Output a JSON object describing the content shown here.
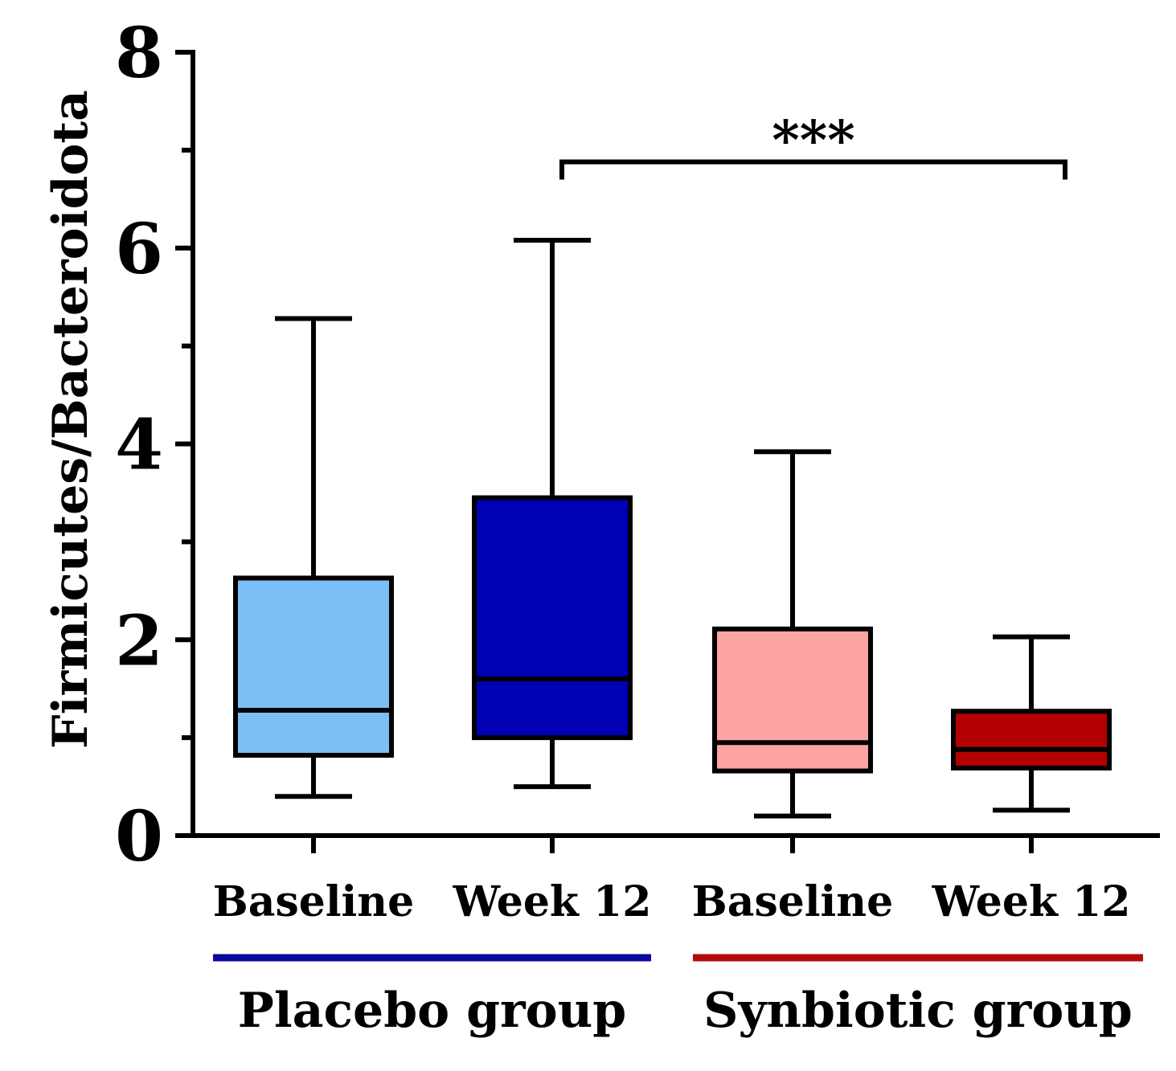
{
  "chart_data": {
    "type": "boxplot",
    "title": "",
    "ylabel": "Firmicutes/Bacteroidota",
    "xlabel": "",
    "ylim": [
      0,
      8
    ],
    "yticks_major": [
      0,
      2,
      4,
      6,
      8
    ],
    "yticks_minor": [
      1,
      3,
      5,
      7
    ],
    "categories": [
      "Baseline",
      "Week 12",
      "Baseline",
      "Week 12"
    ],
    "boxes": [
      {
        "category": "Baseline",
        "group": "Placebo group",
        "color": "#7bbff7",
        "min": 0.4,
        "q1": 0.82,
        "median": 1.28,
        "q3": 2.63,
        "max": 5.28
      },
      {
        "category": "Week 12",
        "group": "Placebo group",
        "color": "#0000b4",
        "min": 0.5,
        "q1": 1.0,
        "median": 1.6,
        "q3": 3.45,
        "max": 6.08
      },
      {
        "category": "Baseline",
        "group": "Synbiotic group",
        "color": "#fca4a4",
        "min": 0.2,
        "q1": 0.66,
        "median": 0.95,
        "q3": 2.11,
        "max": 3.92
      },
      {
        "category": "Week 12",
        "group": "Synbiotic group",
        "color": "#b40000",
        "min": 0.26,
        "q1": 0.69,
        "median": 0.88,
        "q3": 1.27,
        "max": 2.03
      }
    ],
    "groups": [
      {
        "name": "Placebo group",
        "color": "#0a0aa0",
        "members": [
          0,
          1
        ]
      },
      {
        "name": "Synbiotic group",
        "color": "#b40a0a",
        "members": [
          2,
          3
        ]
      }
    ],
    "significance": {
      "from": 1,
      "to": 3,
      "y": 6.88,
      "label": "***"
    }
  }
}
